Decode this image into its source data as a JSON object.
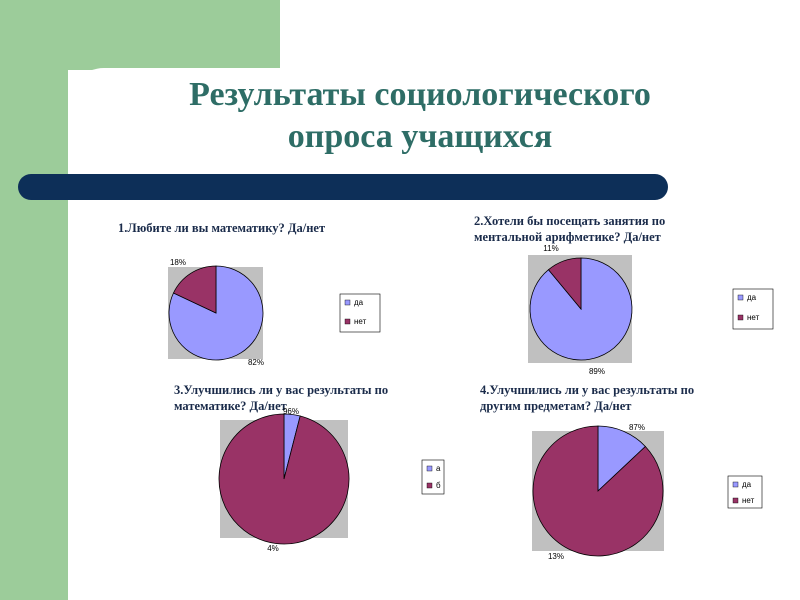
{
  "slide": {
    "title_line1": "Результаты социологического",
    "title_line2": "опроса учащихся"
  },
  "colors": {
    "blue": "#9999ff",
    "maroon": "#993366",
    "plot_bg": "#c0c0c0",
    "title": "#2e6d66"
  },
  "chart_data": [
    {
      "type": "pie",
      "title": "1.Любите ли вы математику? Да/нет",
      "title_lines": [
        "1.Любите ли вы математику? Да/нет"
      ],
      "labels": [
        "да",
        "нет"
      ],
      "values": [
        82,
        18
      ],
      "value_labels": [
        "82%",
        "18%"
      ],
      "legend": [
        "да",
        "нет"
      ]
    },
    {
      "type": "pie",
      "title": "2.Хотели бы посещать занятия по ментальной арифметике? Да/нет",
      "title_lines": [
        "2.Хотели бы посещать занятия по",
        "ментальной арифметике? Да/нет"
      ],
      "labels": [
        "да",
        "нет"
      ],
      "values": [
        89,
        11
      ],
      "value_labels": [
        "89%",
        "11%"
      ],
      "legend": [
        "да",
        "нет"
      ]
    },
    {
      "type": "pie",
      "title": "3.Улучшились ли у вас результаты по математике? Да/нет",
      "title_lines": [
        "3.Улучшились ли  у вас результаты по",
        "математике? Да/нет"
      ],
      "labels": [
        "а",
        "б"
      ],
      "values": [
        4,
        96
      ],
      "value_labels": [
        "4%",
        "96%"
      ],
      "legend": [
        "а",
        "б"
      ]
    },
    {
      "type": "pie",
      "title": "4.Улучшились ли у вас результаты по другим предметам? Да/нет",
      "title_lines": [
        "4.Улучшились ли  у вас результаты по",
        "другим предметам? Да/нет"
      ],
      "labels": [
        "да",
        "нет"
      ],
      "values": [
        13,
        87
      ],
      "value_labels": [
        "13%",
        "87%"
      ],
      "legend": [
        "да",
        "нет"
      ]
    }
  ]
}
